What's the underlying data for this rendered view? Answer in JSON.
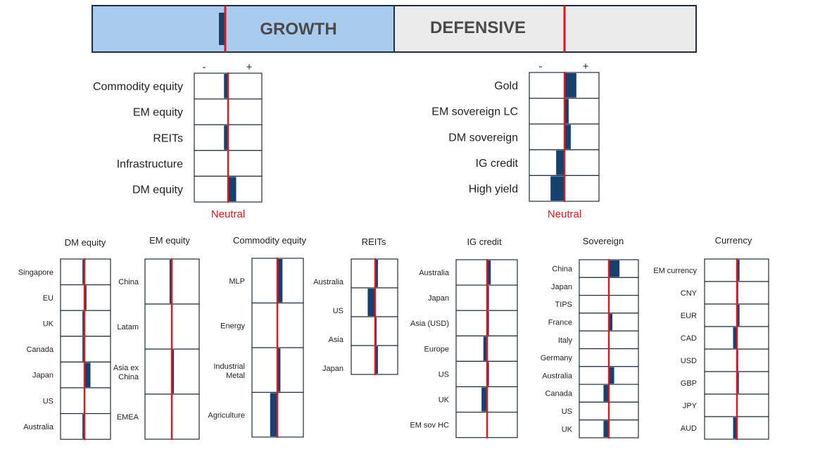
{
  "header": {
    "growth_label": "GROWTH",
    "defensive_label": "DEFENSIVE",
    "growth_fill": "#a9cbee",
    "defensive_fill": "#ebebeb",
    "growth_tilt": -0.9
  },
  "colors": {
    "bar": "#16416e",
    "neutral_line": "#e8131b",
    "border": "#1f2d3d",
    "text": "#222222"
  },
  "chart_data": [
    {
      "type": "bar",
      "title": "",
      "sign_minus": "-",
      "sign_plus": "+",
      "neutral_label": "Neutral",
      "xlim": [
        -5,
        5
      ],
      "categories": [
        "Commodity equity",
        "EM equity",
        "REITs",
        "Infrastructure",
        "DM equity"
      ],
      "values": [
        -0.6,
        0,
        -0.6,
        0,
        1.2
      ]
    },
    {
      "type": "bar",
      "title": "",
      "sign_minus": "-",
      "sign_plus": "+",
      "neutral_label": "Neutral",
      "xlim": [
        -5,
        5
      ],
      "categories": [
        "Gold",
        "EM sovereign LC",
        "DM sovereign",
        "IG credit",
        "High yield"
      ],
      "values": [
        1.7,
        0.6,
        0.9,
        -1.2,
        -2.0
      ]
    },
    {
      "type": "bar",
      "title": "DM equity",
      "xlim": [
        -5,
        5
      ],
      "categories": [
        "Singapore",
        "EU",
        "UK",
        "Canada",
        "Japan",
        "US",
        "Australia"
      ],
      "values": [
        -0.4,
        0.4,
        -0.4,
        -0.4,
        1.2,
        0,
        -0.4
      ]
    },
    {
      "type": "bar",
      "title": "EM equity",
      "xlim": [
        -5,
        5
      ],
      "categories": [
        "China",
        "Latam",
        "Asia ex China",
        "EMEA"
      ],
      "values": [
        -0.4,
        0,
        0.4,
        0
      ]
    },
    {
      "type": "bar",
      "title": "Commodity equity",
      "xlim": [
        -5,
        5
      ],
      "categories": [
        "MLP",
        "Energy",
        "Industrial Metal",
        "Agriculture"
      ],
      "values": [
        1.0,
        0,
        0.6,
        -1.4
      ]
    },
    {
      "type": "bar",
      "title": "REITs",
      "xlim": [
        -5,
        5
      ],
      "categories": [
        "Australia",
        "US",
        "Asia",
        "Japan"
      ],
      "values": [
        0.6,
        -1.6,
        0.3,
        0.6
      ]
    },
    {
      "type": "bar",
      "title": "IG credit",
      "xlim": [
        -5,
        5
      ],
      "categories": [
        "Australia",
        "Japan",
        "Asia (USD)",
        "Europe",
        "US",
        "UK",
        "EM sov HC"
      ],
      "values": [
        0.6,
        0.3,
        0.3,
        -0.6,
        0.3,
        -0.9,
        0
      ]
    },
    {
      "type": "bar",
      "title": "Sovereign",
      "xlim": [
        -5,
        5
      ],
      "categories": [
        "China",
        "Japan",
        "TIPS",
        "France",
        "Italy",
        "Germany",
        "Australia",
        "Canada",
        "US",
        "UK"
      ],
      "values": [
        1.8,
        0,
        0,
        0.6,
        0,
        0,
        0.9,
        -0.9,
        0,
        -0.9
      ]
    },
    {
      "type": "bar",
      "title": "Currency",
      "xlim": [
        -5,
        5
      ],
      "categories": [
        "EM currency",
        "CNY",
        "EUR",
        "CAD",
        "USD",
        "GBP",
        "JPY",
        "AUD"
      ],
      "values": [
        0.4,
        0.2,
        0.4,
        -0.6,
        0.2,
        0.3,
        0,
        -0.6
      ]
    }
  ]
}
